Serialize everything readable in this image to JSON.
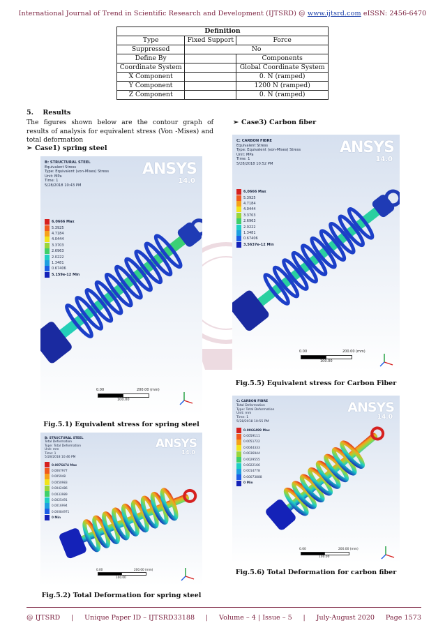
{
  "header": {
    "text": "International Journal of Trend in Scientific Research and Development (IJTSRD) @ ",
    "link": "www.ijtsrd.com",
    "issn": " eISSN: 2456-6470"
  },
  "definition_table": {
    "title": "Definition",
    "rows": [
      [
        "Type",
        "Fixed Support",
        "Force"
      ],
      [
        "Suppressed",
        "No"
      ],
      [
        "Define By",
        "",
        "Components"
      ],
      [
        "Coordinate System",
        "",
        "Global Coordinate System"
      ],
      [
        "X Component",
        "",
        "0. N (ramped)"
      ],
      [
        "Y Component",
        "",
        "1200 N (ramped)"
      ],
      [
        "Z Component",
        "",
        "0. N (ramped)"
      ]
    ]
  },
  "section": {
    "number": "5.",
    "title": "Results",
    "paragraph": "The figures shown below are the contour graph of results of analysis for equivalent stress (Von -Mises) and total deformation"
  },
  "cases": {
    "case1": "Case1) spring steel",
    "case3": "Case3) Carbon fiber"
  },
  "figures": {
    "fig1": {
      "caption": "Fig.5.1) Equivalent stress for spring steel",
      "lines": [
        "B: STRUCTURAL STEEL",
        "Equivalent Stress",
        "Type: Equivalent (von-Mises) Stress",
        "Unit: MPa",
        "Time: 1",
        "5/28/2018 10:43 PM"
      ],
      "legend": [
        "6.0666 Max",
        "5.3925",
        "4.7184",
        "4.0444",
        "3.3703",
        "2.6963",
        "2.0222",
        "1.3481",
        "0.67406",
        "5.159e-12 Min"
      ],
      "scale": [
        "0.00",
        "200.00 (mm)",
        "100.00"
      ]
    },
    "fig2": {
      "caption": "Fig.5.2) Total Deformation for spring steel",
      "lines": [
        "B: STRUCTURAL STEEL",
        "Total Deformation",
        "Type: Total Deformation",
        "Unit: mm",
        "Time: 1",
        "5/28/2018 10:46 PM"
      ],
      "legend": [
        "0.0076474 Max",
        "0.0067977",
        "0.005948",
        "0.0050983",
        "0.0042486",
        "0.0033989",
        "0.0025491",
        "0.0016994",
        "0.00084971",
        "0 Min"
      ],
      "scale": [
        "0.00",
        "200.00 (mm)",
        "100.00"
      ]
    },
    "fig3": {
      "caption": "Fig.5.5) Equivalent stress for Carbon Fiber",
      "lines": [
        "C: CARBON FIBRE",
        "Equivalent Stress",
        "Type: Equivalent (von-Mises) Stress",
        "Unit: MPa",
        "Time: 1",
        "5/28/2018 10:52 PM"
      ],
      "legend": [
        "6.0666 Max",
        "5.3925",
        "4.7184",
        "4.0444",
        "3.3703",
        "2.6963",
        "2.0222",
        "1.3481",
        "0.67406",
        "3.5637e-12 Min"
      ],
      "scale": [
        "0.00",
        "200.00 (mm)",
        "100.00"
      ]
    },
    "fig4": {
      "caption": "Fig.5.6) Total Deformation for carbon fiber",
      "lines": [
        "C: CARBON FIBRE",
        "Total Deformation",
        "Type: Total Deformation",
        "Unit: mm",
        "Time: 1",
        "5/28/2018 10:55 PM"
      ],
      "legend": [
        "0.0066499 Max",
        "0.0059111",
        "0.0051722",
        "0.0044333",
        "0.0036944",
        "0.0029555",
        "0.0022166",
        "0.0014778",
        "0.00073888",
        "0 Min"
      ],
      "scale": [
        "0.00",
        "200.00 (mm)",
        "100.00"
      ]
    },
    "logo": "ANSYS",
    "version": "14.0"
  },
  "colors": {
    "legend": [
      "#d6201f",
      "#f05a1e",
      "#f6a21c",
      "#f2e31b",
      "#9ad63b",
      "#3fd06a",
      "#1fcfc4",
      "#1e9fe0",
      "#1c5ee6",
      "#1422b8"
    ],
    "accent": "#7a1f3d"
  },
  "footer": {
    "items": [
      "@ IJTSRD",
      "|",
      "Unique Paper ID – IJTSRD33188",
      "|",
      "Volume – 4 | Issue – 5",
      "|",
      "July-August 2020",
      "Page 1573"
    ]
  }
}
